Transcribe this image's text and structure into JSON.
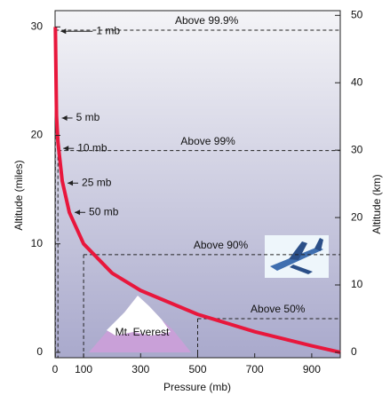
{
  "chart_data": {
    "type": "line",
    "xlabel": "Pressure (mb)",
    "ylabel": "Altitude (miles)",
    "y2label": "Altitude (km)",
    "x": [
      1000,
      900,
      700,
      500,
      300,
      200,
      100,
      50,
      25,
      10,
      5,
      1
    ],
    "values": [
      0,
      0.6,
      1.9,
      3.5,
      5.7,
      7.3,
      10,
      12.9,
      15.8,
      19.4,
      21.8,
      30
    ],
    "color": "#e8173c",
    "xlim": [
      0,
      1000
    ],
    "xticks": [
      0,
      100,
      300,
      500,
      700,
      900
    ],
    "ylim": [
      -0.5,
      31.5
    ],
    "yticks": [
      0,
      10,
      20,
      30
    ],
    "y2lim": [
      -0.8,
      50.7
    ],
    "y2ticks": [
      0,
      10,
      20,
      30,
      40,
      50
    ],
    "annotations": [
      {
        "label": "1 mb",
        "pressure": 1,
        "altitude": 29.6
      },
      {
        "label": "5 mb",
        "pressure": 5,
        "altitude": 21.6
      },
      {
        "label": "10 mb",
        "pressure": 10,
        "altitude": 18.8
      },
      {
        "label": "25 mb",
        "pressure": 25,
        "altitude": 15.6
      },
      {
        "label": "50 mb",
        "pressure": 50,
        "altitude": 12.9
      }
    ],
    "reference_lines": [
      {
        "label": "Above 99.9%",
        "pressure": 1,
        "altitude": 29.7
      },
      {
        "label": "Above 99%",
        "pressure": 10,
        "altitude": 18.6
      },
      {
        "label": "Above 90%",
        "pressure": 100,
        "altitude": 9
      },
      {
        "label": "Above 50%",
        "pressure": 500,
        "altitude": 3.1
      }
    ],
    "mountain_label": "Mt. Everest"
  }
}
